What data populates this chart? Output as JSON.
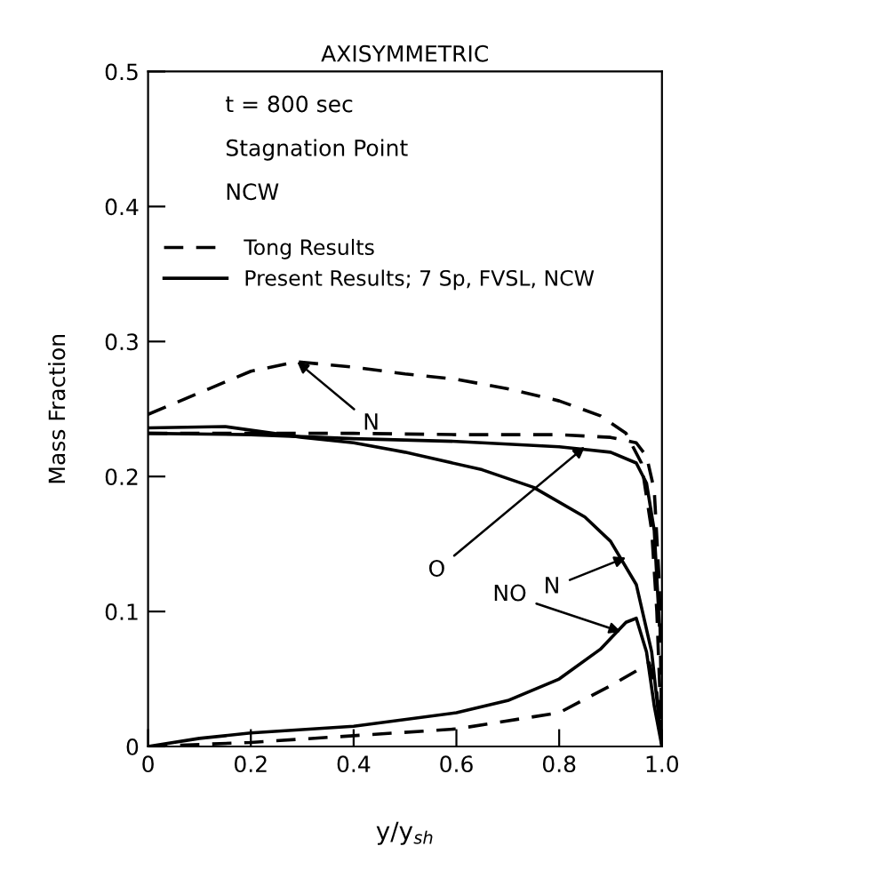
{
  "chart_data": {
    "type": "line",
    "title": "AXISYMMETRIC",
    "xlabel": "y/y$_{sh}$",
    "ylabel": "Mass Fraction",
    "xlim": [
      0,
      1.0
    ],
    "ylim": [
      0,
      0.5
    ],
    "xticks": [
      0,
      0.2,
      0.4,
      0.6,
      0.8,
      {
        "value": 1.0,
        "label": "1.0"
      }
    ],
    "yticks": [
      0,
      0.1,
      0.2,
      0.3,
      0.4,
      0.5
    ],
    "grid": false,
    "legend": "top",
    "marker": "none",
    "series": [
      {
        "name": "Tong Results",
        "color": "#000000",
        "line_style": "dashed",
        "x": [
          0,
          0.1,
          0.2,
          0.29,
          0.4,
          0.5,
          0.6,
          0.7,
          0.8,
          0.88,
          0.93,
          0.96,
          0.98,
          0.99,
          1.0
        ],
        "values": [
          0.246,
          0.262,
          0.278,
          0.285,
          0.281,
          0.276,
          0.272,
          0.265,
          0.256,
          0.245,
          0.232,
          0.21,
          0.16,
          0.1,
          0.0
        ]
      },
      {
        "color": "#000000",
        "line_style": "dashed",
        "x": [
          0,
          0.2,
          0.4,
          0.6,
          0.8,
          0.9,
          0.95,
          0.97,
          0.985,
          0.995,
          1.0
        ],
        "values": [
          0.232,
          0.232,
          0.232,
          0.231,
          0.231,
          0.229,
          0.225,
          0.215,
          0.19,
          0.12,
          0.0
        ]
      },
      {
        "color": "#000000",
        "line_style": "dashed",
        "x": [
          0,
          0.2,
          0.4,
          0.6,
          0.8,
          0.9,
          0.95,
          0.975,
          0.99,
          1.0
        ],
        "values": [
          0.0,
          0.003,
          0.008,
          0.013,
          0.025,
          0.045,
          0.056,
          0.062,
          0.04,
          0.0
        ]
      },
      {
        "name": "Present Results; 7 Sp, FVSL, NCW",
        "color": "#000000",
        "line_style": "solid",
        "x": [
          0,
          0.2,
          0.4,
          0.6,
          0.8,
          0.9,
          0.95,
          0.97,
          0.985,
          0.995
        ],
        "values": [
          0.232,
          0.231,
          0.228,
          0.226,
          0.222,
          0.218,
          0.21,
          0.195,
          0.16,
          0.09
        ]
      },
      {
        "color": "#000000",
        "line_style": "solid",
        "x": [
          0,
          0.15,
          0.3,
          0.4,
          0.5,
          0.65,
          0.75,
          0.85,
          0.9,
          0.95,
          0.98,
          1.0
        ],
        "values": [
          0.236,
          0.237,
          0.229,
          0.225,
          0.218,
          0.205,
          0.192,
          0.17,
          0.152,
          0.12,
          0.07,
          0.0
        ]
      },
      {
        "color": "#000000",
        "line_style": "solid",
        "x": [
          0,
          0.1,
          0.2,
          0.4,
          0.6,
          0.7,
          0.8,
          0.88,
          0.93,
          0.95,
          0.97,
          0.985,
          1.0
        ],
        "values": [
          0.0,
          0.006,
          0.01,
          0.015,
          0.025,
          0.034,
          0.05,
          0.072,
          0.092,
          0.095,
          0.07,
          0.03,
          0.0
        ]
      }
    ],
    "annotations": [
      "t = 800 sec",
      "Stagnation Point",
      "NCW",
      {
        "text": "N",
        "x": 0.29,
        "y": 0.285
      },
      {
        "text": "O",
        "x": 0.85,
        "y": 0.222
      },
      {
        "text": "N",
        "x": 0.93,
        "y": 0.14
      },
      {
        "text": "NO",
        "x": 0.92,
        "y": 0.085
      }
    ]
  }
}
